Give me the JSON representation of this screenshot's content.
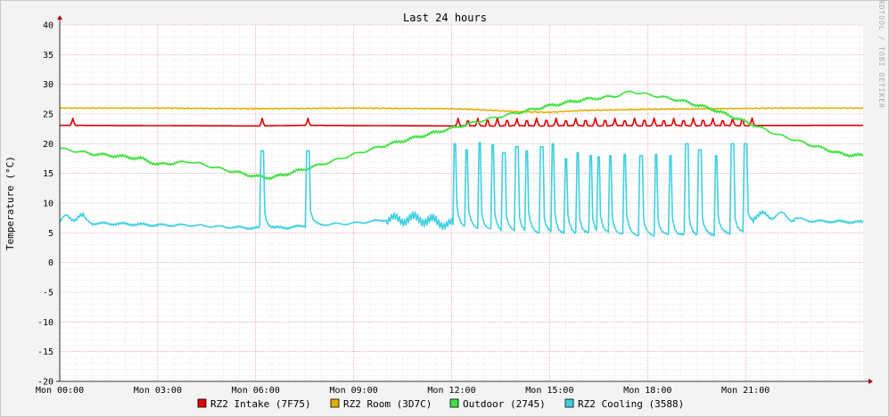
{
  "chart_data": {
    "type": "line",
    "title": "Last 24 hours",
    "ylabel": "Temperature (°C)",
    "watermark": "RRDTOOL / TOBI OETIKER",
    "ylim": [
      -20,
      40
    ],
    "y_ticks": [
      40,
      35,
      30,
      25,
      20,
      15,
      10,
      5,
      0,
      -5,
      -10,
      -15,
      -20
    ],
    "xlim_hours": [
      0,
      24.6
    ],
    "x_tick_hours": [
      0,
      3,
      6,
      9,
      12,
      15,
      18,
      21
    ],
    "x_tick_labels": [
      "Mon 00:00",
      "Mon 03:00",
      "Mon 06:00",
      "Mon 09:00",
      "Mon 12:00",
      "Mon 15:00",
      "Mon 18:00",
      "Mon 21:00"
    ],
    "grid": true,
    "legend_position": "bottom",
    "series": [
      {
        "name": "RZ2 Intake (7F75)",
        "color": "#e00000",
        "base": [
          [
            0,
            23.1
          ],
          [
            6,
            23.0
          ],
          [
            7.5,
            23.1
          ],
          [
            12,
            23.0
          ],
          [
            24.6,
            23.1
          ]
        ],
        "spike_hours": [
          0.4,
          6.2,
          7.6,
          12.2,
          12.5,
          12.8,
          13.1,
          13.4,
          13.7,
          14.0,
          14.3,
          14.6,
          14.9,
          15.2,
          15.5,
          15.8,
          16.1,
          16.4,
          16.7,
          17.0,
          17.3,
          17.6,
          17.9,
          18.2,
          18.5,
          18.8,
          19.1,
          19.4,
          19.7,
          20.0,
          20.3,
          20.6,
          20.9,
          21.2
        ],
        "spike_peak": 24.3,
        "spike_start": 12.0,
        "spike_end": 21.3
      },
      {
        "name": "RZ2 Room (3D7C)",
        "color": "#e0b000",
        "points": [
          [
            0,
            26.0
          ],
          [
            3,
            26.0
          ],
          [
            6,
            25.9
          ],
          [
            9,
            26.0
          ],
          [
            12,
            25.9
          ],
          [
            13,
            25.7
          ],
          [
            14,
            25.4
          ],
          [
            15,
            25.3
          ],
          [
            16,
            25.6
          ],
          [
            18,
            25.8
          ],
          [
            20,
            25.9
          ],
          [
            22,
            26.0
          ],
          [
            24.6,
            26.0
          ]
        ]
      },
      {
        "name": "Outdoor (2745)",
        "color": "#40e040",
        "points": [
          [
            0,
            19.2
          ],
          [
            1,
            18.3
          ],
          [
            2,
            17.8
          ],
          [
            2.5,
            17.5
          ],
          [
            3,
            16.5
          ],
          [
            4,
            17.0
          ],
          [
            5,
            15.7
          ],
          [
            6,
            14.5
          ],
          [
            6.5,
            14.3
          ],
          [
            7,
            15.0
          ],
          [
            8,
            16.5
          ],
          [
            9,
            18.2
          ],
          [
            10,
            19.8
          ],
          [
            11,
            21.2
          ],
          [
            12,
            22.6
          ],
          [
            13,
            24.0
          ],
          [
            14,
            25.2
          ],
          [
            15,
            26.4
          ],
          [
            16,
            27.4
          ],
          [
            17,
            28.0
          ],
          [
            17.5,
            28.8
          ],
          [
            18,
            28.3
          ],
          [
            19,
            27.3
          ],
          [
            20,
            25.8
          ],
          [
            21,
            23.7
          ],
          [
            22,
            21.5
          ],
          [
            23,
            19.8
          ],
          [
            24,
            18.2
          ],
          [
            24.6,
            18.0
          ]
        ]
      },
      {
        "name": "RZ2 Cooling (3588)",
        "color": "#40d0e0",
        "base": [
          [
            0,
            6.8
          ],
          [
            0.2,
            7.5
          ],
          [
            0.6,
            7.8
          ],
          [
            1.0,
            6.6
          ],
          [
            2.0,
            6.5
          ],
          [
            3.0,
            6.3
          ],
          [
            4.0,
            6.3
          ],
          [
            5.0,
            6.0
          ],
          [
            6.0,
            5.8
          ],
          [
            7.0,
            5.9
          ],
          [
            8.0,
            6.4
          ],
          [
            9.0,
            6.6
          ],
          [
            10.0,
            7.2
          ],
          [
            11.0,
            7.4
          ],
          [
            12.0,
            6.4
          ],
          [
            13.0,
            5.5
          ],
          [
            14.0,
            5.2
          ],
          [
            15.0,
            5.0
          ],
          [
            16.0,
            4.8
          ],
          [
            17.0,
            4.9
          ],
          [
            18.0,
            4.6
          ],
          [
            19.0,
            4.6
          ],
          [
            20.0,
            4.8
          ],
          [
            21.0,
            5.0
          ],
          [
            21.3,
            7.8
          ],
          [
            22.0,
            8.0
          ],
          [
            23.0,
            7.0
          ],
          [
            24.6,
            6.8
          ]
        ],
        "spikes": [
          [
            6.2,
            18.8
          ],
          [
            7.6,
            18.8
          ],
          [
            12.1,
            20.0
          ],
          [
            12.45,
            19.0
          ],
          [
            12.85,
            20.2
          ],
          [
            13.25,
            19.8
          ],
          [
            13.6,
            18.5
          ],
          [
            14.0,
            19.5
          ],
          [
            14.3,
            18.8
          ],
          [
            14.75,
            19.5
          ],
          [
            15.1,
            20.0
          ],
          [
            15.5,
            17.5
          ],
          [
            15.85,
            18.5
          ],
          [
            16.25,
            18.0
          ],
          [
            16.5,
            17.8
          ],
          [
            16.85,
            18.0
          ],
          [
            17.3,
            18.2
          ],
          [
            17.8,
            18.0
          ],
          [
            18.25,
            18.2
          ],
          [
            18.7,
            18.0
          ],
          [
            19.2,
            20.0
          ],
          [
            19.6,
            19.0
          ],
          [
            20.1,
            18.0
          ],
          [
            20.6,
            20.0
          ],
          [
            21.0,
            20.0
          ]
        ]
      }
    ]
  }
}
